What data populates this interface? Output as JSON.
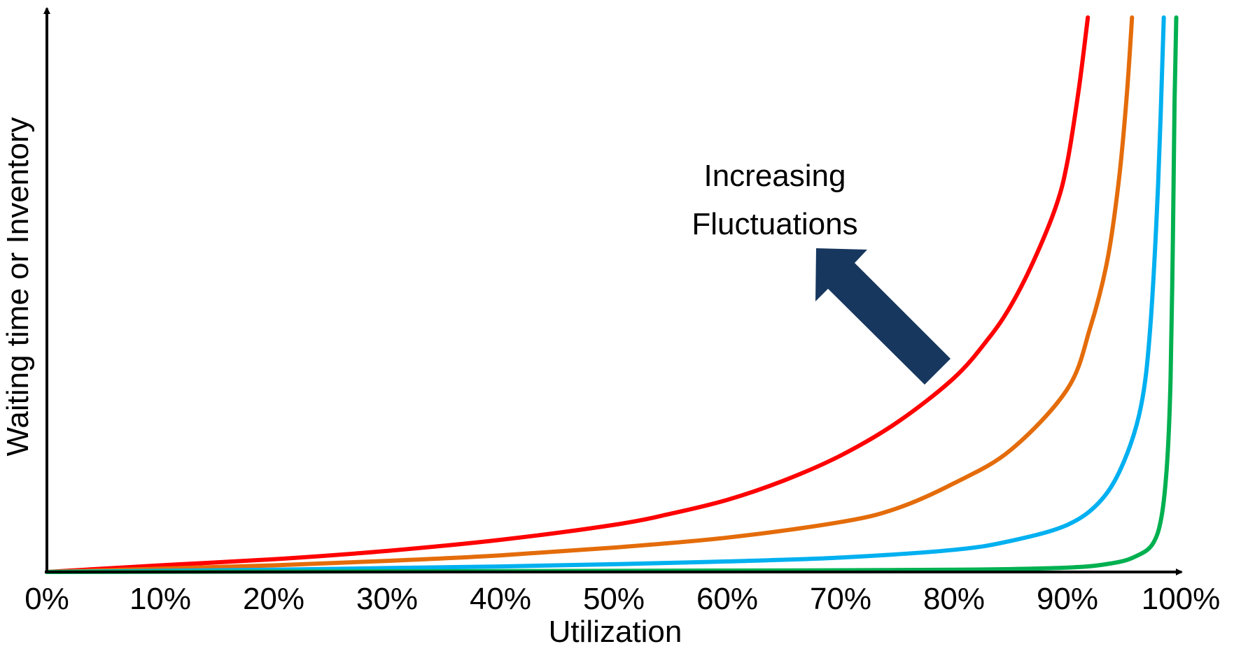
{
  "chart_data": {
    "type": "line",
    "title": "",
    "xlabel": "Utilization",
    "ylabel": "Waiting time or Inventory",
    "xlim": [
      0,
      100
    ],
    "ylim": [
      0,
      1
    ],
    "x_tick_labels": [
      "0%",
      "10%",
      "20%",
      "30%",
      "40%",
      "50%",
      "60%",
      "70%",
      "80%",
      "90%",
      "100%"
    ],
    "x_tick_values": [
      0,
      10,
      20,
      30,
      40,
      50,
      60,
      70,
      80,
      90,
      100
    ],
    "y_ticks_visible": false,
    "grid": false,
    "legend": "none",
    "annotation": {
      "lines": [
        "Increasing",
        "Fluctuations"
      ],
      "arrow_direction": "up-left",
      "arrow_color": "#17375e"
    },
    "series": [
      {
        "color": "#ff0000",
        "x": [
          0,
          10,
          20,
          30,
          40,
          50,
          55,
          60,
          65,
          70,
          75,
          80,
          83,
          85,
          87,
          89,
          90,
          91,
          91.8
        ],
        "y": [
          0,
          0.012,
          0.023,
          0.038,
          0.058,
          0.085,
          0.105,
          0.13,
          0.165,
          0.21,
          0.27,
          0.35,
          0.42,
          0.48,
          0.56,
          0.66,
          0.74,
          0.87,
          1.0
        ]
      },
      {
        "color": "#e46c0a",
        "x": [
          0,
          10,
          20,
          30,
          40,
          50,
          60,
          70,
          75,
          80,
          85,
          90,
          92,
          93.5,
          94.5,
          95.2,
          95.7
        ],
        "y": [
          0,
          0.006,
          0.012,
          0.02,
          0.03,
          0.044,
          0.062,
          0.09,
          0.115,
          0.16,
          0.22,
          0.33,
          0.44,
          0.56,
          0.7,
          0.85,
          1.0
        ]
      },
      {
        "color": "#00b0f0",
        "x": [
          0,
          10,
          20,
          30,
          40,
          50,
          60,
          70,
          80,
          85,
          90,
          93,
          95,
          96.5,
          97.3,
          98.0,
          98.5
        ],
        "y": [
          0,
          0.002,
          0.004,
          0.007,
          0.01,
          0.014,
          0.019,
          0.026,
          0.04,
          0.056,
          0.085,
          0.13,
          0.2,
          0.3,
          0.44,
          0.7,
          1.0
        ]
      },
      {
        "color": "#00b050",
        "x": [
          0,
          20,
          40,
          60,
          80,
          90,
          94,
          96,
          97.5,
          98.3,
          98.8,
          99.1,
          99.3,
          99.45,
          99.6
        ],
        "y": [
          0,
          0.0008,
          0.0015,
          0.0025,
          0.004,
          0.008,
          0.016,
          0.028,
          0.05,
          0.1,
          0.2,
          0.35,
          0.6,
          0.85,
          1.0
        ]
      }
    ]
  }
}
